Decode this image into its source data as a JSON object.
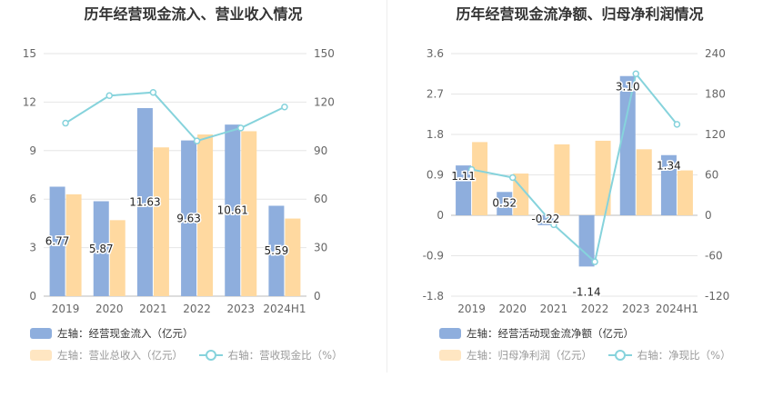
{
  "chart_data": [
    {
      "type": "bar",
      "title": "历年经营现金流入、营业收入情况",
      "categories": [
        "2019",
        "2020",
        "2021",
        "2022",
        "2023",
        "2024H1"
      ],
      "left_axis": {
        "ticks": [
          "0",
          "3",
          "6",
          "9",
          "12",
          "15"
        ],
        "range": [
          0,
          15
        ]
      },
      "right_axis": {
        "ticks": [
          "0",
          "30",
          "60",
          "90",
          "120",
          "150"
        ],
        "range": [
          0,
          150
        ]
      },
      "series": [
        {
          "name": "左轴：经营现金流入（亿元）",
          "type": "bar",
          "axis": "left",
          "color": "#8eaedd",
          "values": [
            6.77,
            5.87,
            11.63,
            9.63,
            10.61,
            5.59
          ],
          "labels": [
            "6.77",
            "5.87",
            "11.63",
            "9.63",
            "10.61",
            "5.59"
          ]
        },
        {
          "name": "左轴：营业总收入（亿元）",
          "type": "bar",
          "axis": "left",
          "color": "#ffd9a0",
          "values": [
            6.3,
            4.7,
            9.2,
            10.0,
            10.2,
            4.8
          ]
        },
        {
          "name": "右轴：营收现金比（%）",
          "type": "line",
          "axis": "right",
          "color": "#86d3dc",
          "values": [
            107,
            124,
            126,
            96,
            104,
            117
          ]
        }
      ]
    },
    {
      "type": "bar",
      "title": "历年经营现金流净额、归母净利润情况",
      "categories": [
        "2019",
        "2020",
        "2021",
        "2022",
        "2023",
        "2024H1"
      ],
      "left_axis": {
        "ticks": [
          "-1.8",
          "-0.9",
          "0",
          "0.9",
          "1.8",
          "2.7",
          "3.6"
        ],
        "range": [
          -1.8,
          3.6
        ]
      },
      "right_axis": {
        "ticks": [
          "-120",
          "-60",
          "0",
          "60",
          "120",
          "180",
          "240"
        ],
        "range": [
          -120,
          240
        ]
      },
      "series": [
        {
          "name": "左轴：经营活动现金流净额（亿元）",
          "type": "bar",
          "axis": "left",
          "color": "#8eaedd",
          "values": [
            1.11,
            0.52,
            -0.22,
            -1.14,
            3.1,
            1.34
          ],
          "labels": [
            "1.11",
            "0.52",
            "-0.22",
            "-1.14",
            "3.10",
            "1.34"
          ]
        },
        {
          "name": "左轴：归母净利润（亿元）",
          "type": "bar",
          "axis": "left",
          "color": "#ffd9a0",
          "values": [
            1.63,
            0.93,
            1.58,
            1.66,
            1.47,
            1.0
          ]
        },
        {
          "name": "右轴：净现比（%）",
          "type": "line",
          "axis": "right",
          "color": "#86d3dc",
          "values": [
            68,
            56,
            -14,
            -69,
            210,
            135
          ]
        }
      ]
    }
  ]
}
